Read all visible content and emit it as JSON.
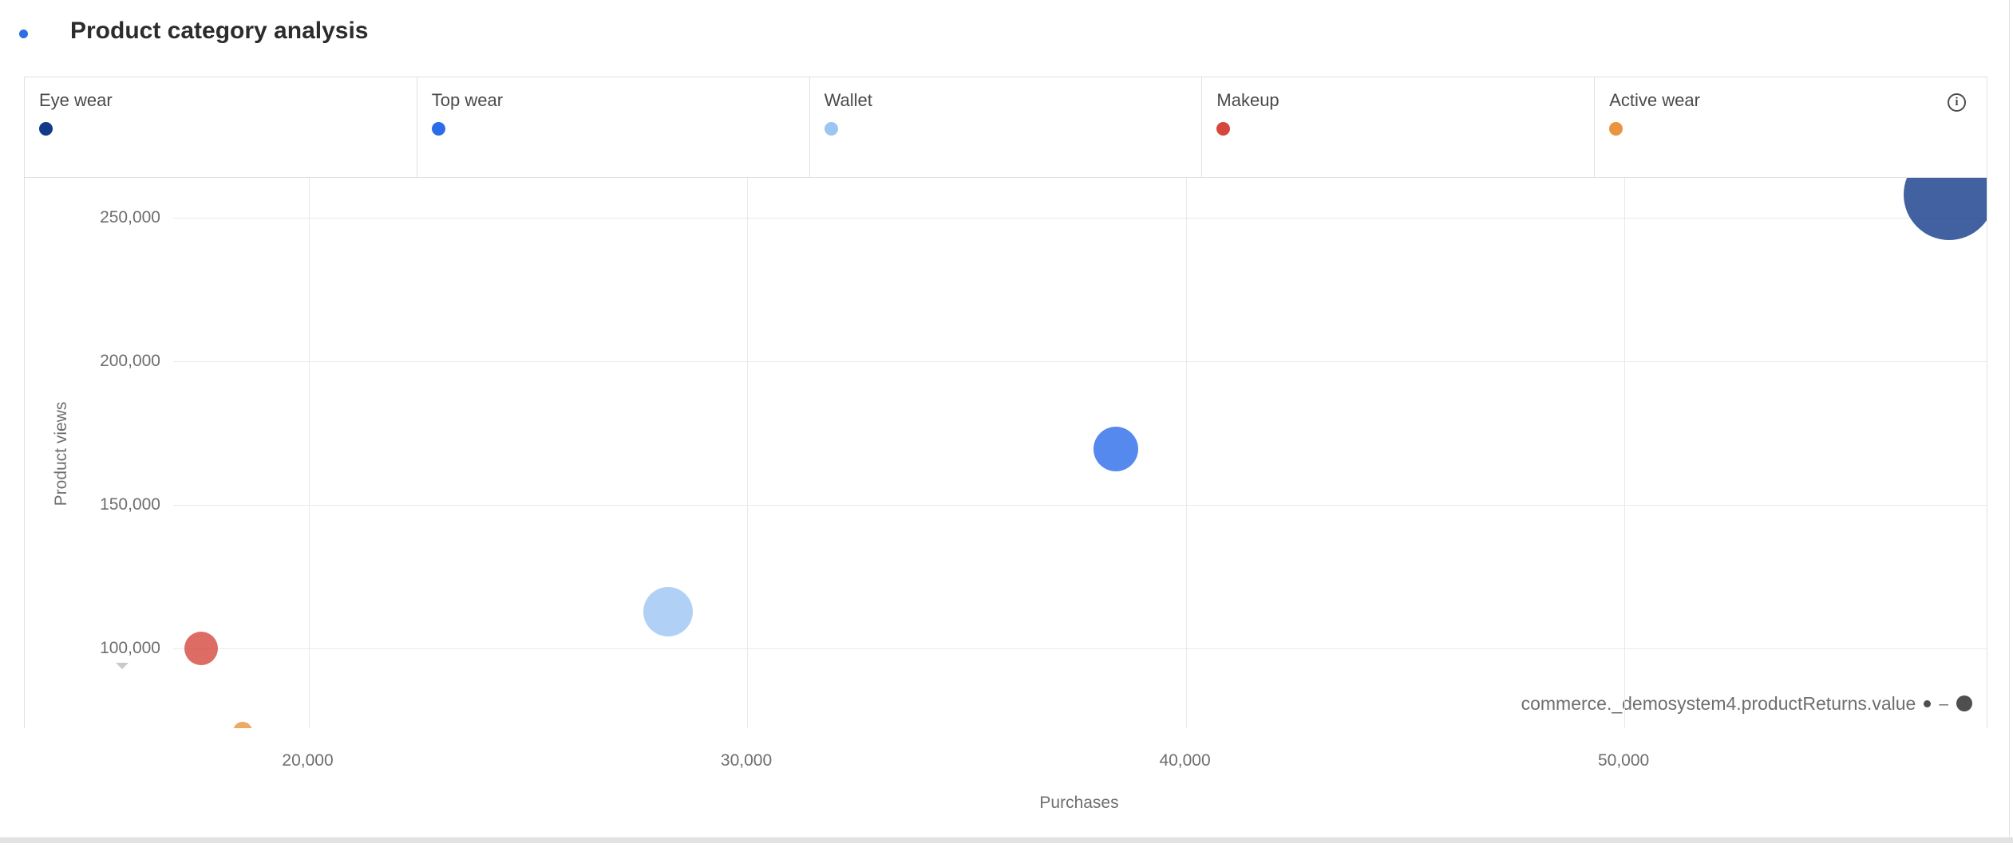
{
  "page": {
    "title": "Product category analysis",
    "title_dot_color": "#2b6fe3"
  },
  "legend": {
    "items": [
      {
        "label": "Eye wear",
        "color": "#12398a"
      },
      {
        "label": "Top wear",
        "color": "#2b6ce8"
      },
      {
        "label": "Wallet",
        "color": "#9cc5f2"
      },
      {
        "label": "Makeup",
        "color": "#d5473d"
      },
      {
        "label": "Active wear",
        "color": "#e89440"
      }
    ],
    "info_icon_glyph": "i"
  },
  "axes": {
    "x_label": "Purchases",
    "y_label": "Product views",
    "x_tick_labels": [
      "20,000",
      "30,000",
      "40,000",
      "50,000"
    ],
    "y_tick_labels": [
      "250,000",
      "200,000",
      "150,000",
      "100,000"
    ]
  },
  "size_legend": {
    "label": "commerce._demosystem4.productReturns.value"
  },
  "chart_data": {
    "type": "scatter",
    "title": "Product category analysis",
    "xlabel": "Purchases",
    "ylabel": "Product views",
    "size_label": "commerce._demosystem4.productReturns.value",
    "x_ticks": [
      20000,
      30000,
      40000,
      50000
    ],
    "y_ticks": [
      250000,
      200000,
      150000,
      100000
    ],
    "xlim": [
      13530,
      58260
    ],
    "ylim": [
      72200,
      263900
    ],
    "y_axis_truncated": true,
    "grid": true,
    "legend_position": "top",
    "series": [
      {
        "name": "Eye wear",
        "color": "#12398a",
        "purchases": 57400,
        "product_views": 258000,
        "bubble_radius_px": 57
      },
      {
        "name": "Top wear",
        "color": "#2b6ce8",
        "purchases": 38400,
        "product_views": 169400,
        "bubble_radius_px": 28
      },
      {
        "name": "Wallet",
        "color": "#9cc5f2",
        "purchases": 28200,
        "product_views": 112800,
        "bubble_radius_px": 31
      },
      {
        "name": "Makeup",
        "color": "#d5473d",
        "purchases": 17560,
        "product_views": 100000,
        "bubble_radius_px": 21
      },
      {
        "name": "Active wear",
        "color": "#e89440",
        "purchases": 18490,
        "product_views": 71100,
        "bubble_radius_px": 12
      }
    ]
  }
}
